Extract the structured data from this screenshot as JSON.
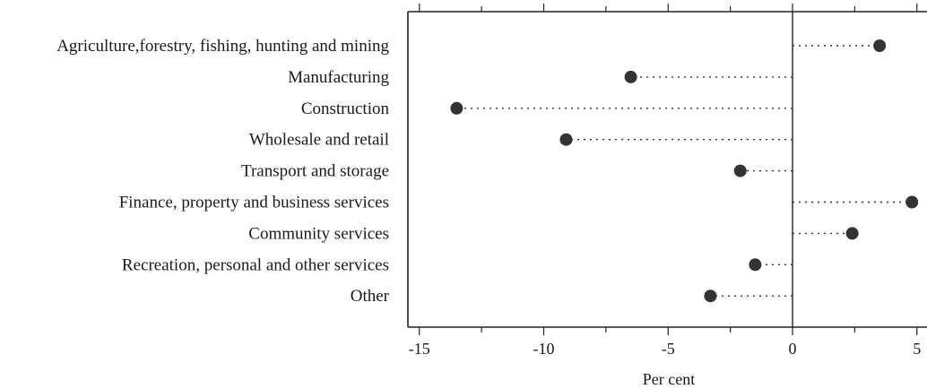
{
  "chart_data": {
    "type": "dot",
    "categories": [
      "Agriculture,forestry, fishing, hunting and mining",
      "Manufacturing",
      "Construction",
      "Wholesale and retail",
      "Transport and storage",
      "Finance, property and business services",
      "Community services",
      "Recreation, personal and other services",
      "Other"
    ],
    "values": [
      3.5,
      -6.5,
      -13.5,
      -9.1,
      -2.1,
      4.8,
      2.4,
      -1.5,
      -3.3
    ],
    "x_ticks": [
      "-15",
      "-10",
      "-5",
      "0",
      "5"
    ],
    "xlabel": "Per cent",
    "xlim": [
      -15.4,
      5.0
    ],
    "grid": false,
    "marker_color": "#333333",
    "connector_style": "dotted"
  }
}
